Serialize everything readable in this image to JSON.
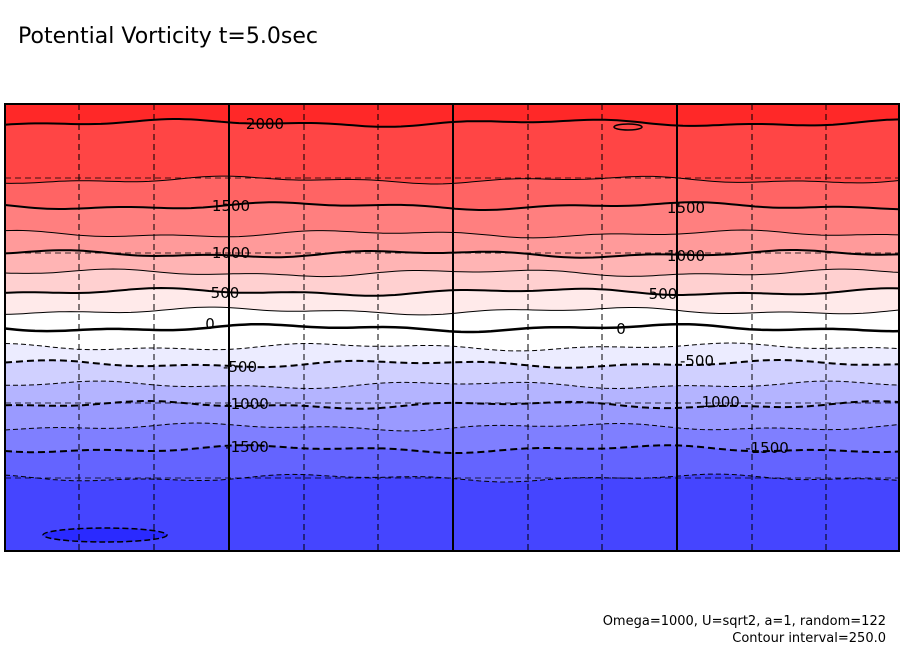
{
  "chart_data": {
    "type": "heatmap",
    "subtype": "filled-contour",
    "title": "Potential Vorticity t=5.0sec",
    "footer": [
      "Omega=1000, U=sqrt2, a=1, random=122",
      "Contour interval=250.0"
    ],
    "contour_interval": 250.0,
    "value_range": [
      -2000,
      2250
    ],
    "levels": [
      2000,
      1750,
      1500,
      1250,
      1000,
      750,
      500,
      250,
      0,
      -250,
      -500,
      -750,
      -1000,
      -1250,
      -1500,
      -1750
    ],
    "contour_labels": [
      "2000",
      "1500",
      "1000",
      "500",
      "0",
      "-500",
      "-1000",
      "-1500",
      "1500",
      "1000",
      "500",
      "0",
      "-500",
      "-1000",
      "-1500"
    ],
    "negative_contours": "dashed",
    "grid": true,
    "band_colors": {
      "above_2000": "#ff2828",
      "1750_2000": "#ff4545",
      "1500_1750": "#ff6464",
      "1250_1500": "#ff7f7f",
      "1000_1250": "#ff9a9a",
      "750_1000": "#ffb4b4",
      "500_750": "#ffd0d0",
      "250_500": "#ffeaea",
      "0_250": "#ffffff",
      "-250_0": "#ffffff",
      "-500_-250": "#ececff",
      "-750_-500": "#d0d0ff",
      "-1000_-750": "#b4b4ff",
      "-1250_-1000": "#9a9aff",
      "-1500_-1250": "#7f7fff",
      "-1750_-1500": "#6464ff",
      "-2000_-1750": "#4545ff",
      "below_-2000": "#2a2aff"
    }
  }
}
